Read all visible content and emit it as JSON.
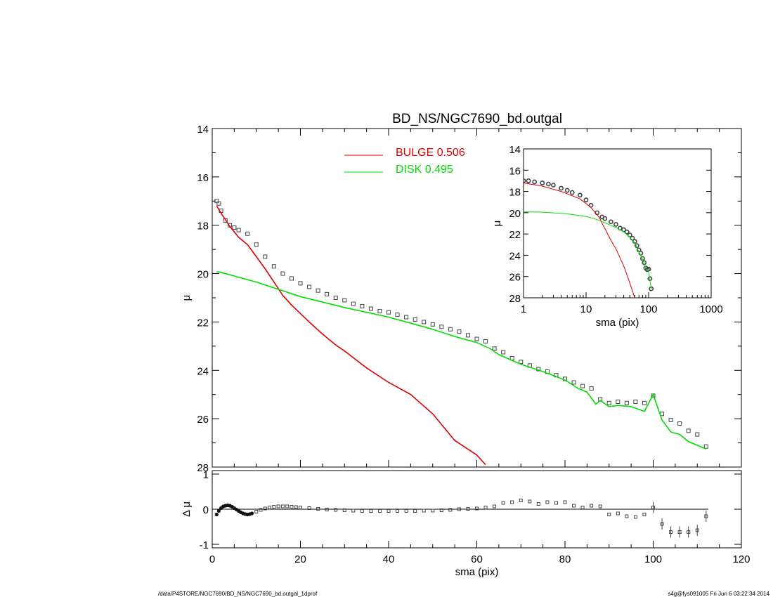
{
  "title": "BD_NS/NGC7690_bd.outgal",
  "footer": {
    "left": "/data/P4STORE/NGC7690/BD_NS/NGC7690_bd.outgal_1dprof",
    "right": "s4g@fys091005  Fri Jun  6 03:22:34 2014"
  },
  "colors": {
    "bulge": "#dd0000",
    "disk": "#00dd00",
    "data": "#444444",
    "axis": "#000000"
  },
  "chart_data": [
    {
      "type": "line",
      "panel": "main",
      "xlabel": "",
      "ylabel": "μ",
      "xlim": [
        0,
        120
      ],
      "ylim": [
        28,
        14
      ],
      "y_inverted": true,
      "yticks": [
        14,
        16,
        18,
        20,
        22,
        24,
        26,
        28
      ],
      "legend_position": "top-center",
      "series": [
        {
          "name": "BULGE  0.506",
          "color": "#dd0000",
          "style": "line",
          "x": [
            1,
            2,
            4,
            6,
            8,
            10,
            12,
            14,
            16,
            18,
            20,
            22,
            25,
            28,
            30,
            35,
            40,
            45,
            50,
            55,
            60,
            62
          ],
          "y": [
            17.2,
            17.5,
            18.05,
            18.5,
            18.8,
            19.3,
            19.8,
            20.35,
            20.9,
            21.3,
            21.65,
            22.0,
            22.5,
            22.95,
            23.2,
            23.9,
            24.5,
            25.0,
            25.8,
            26.9,
            27.5,
            27.9
          ]
        },
        {
          "name": "DISK  0.495",
          "color": "#00dd00",
          "style": "line",
          "x": [
            1,
            2,
            5,
            10,
            15,
            20,
            30,
            40,
            50,
            55,
            60,
            63,
            65,
            70,
            75,
            80,
            83,
            85,
            87,
            88,
            90,
            92,
            95,
            98,
            100,
            102,
            104,
            106,
            108,
            110,
            112
          ],
          "y": [
            19.92,
            19.95,
            20.1,
            20.35,
            20.65,
            20.95,
            21.4,
            21.8,
            22.3,
            22.6,
            22.85,
            23.1,
            23.35,
            23.75,
            24.05,
            24.4,
            24.75,
            24.9,
            25.4,
            25.25,
            25.5,
            25.45,
            25.5,
            25.7,
            25.0,
            26.05,
            26.55,
            26.65,
            26.95,
            27.1,
            27.25
          ]
        },
        {
          "name": "",
          "color": "#444444",
          "style": "square-markers",
          "x": [
            1,
            1.5,
            2,
            3,
            4,
            5,
            6,
            8,
            10,
            12,
            14,
            16,
            18,
            20,
            22,
            24,
            26,
            28,
            30,
            32,
            34,
            36,
            38,
            40,
            42,
            44,
            46,
            48,
            50,
            52,
            54,
            56,
            58,
            60,
            62,
            64,
            66,
            68,
            70,
            72,
            74,
            76,
            78,
            80,
            82,
            84,
            86,
            88,
            90,
            92,
            94,
            96,
            98,
            100,
            102,
            104,
            106,
            108,
            110,
            112
          ],
          "y": [
            17.0,
            17.1,
            17.4,
            17.8,
            18.0,
            18.1,
            18.2,
            18.35,
            18.8,
            19.3,
            19.7,
            20.0,
            20.2,
            20.4,
            20.55,
            20.7,
            20.85,
            21.0,
            21.1,
            21.25,
            21.35,
            21.45,
            21.55,
            21.6,
            21.7,
            21.8,
            21.9,
            22.0,
            22.1,
            22.2,
            22.3,
            22.4,
            22.55,
            22.7,
            22.8,
            23.1,
            23.25,
            23.5,
            23.65,
            23.8,
            23.95,
            24.05,
            24.2,
            24.35,
            24.5,
            24.65,
            24.75,
            25.2,
            25.35,
            25.3,
            25.35,
            25.3,
            25.35,
            25.05,
            25.8,
            26.05,
            26.2,
            26.5,
            26.65,
            27.15
          ]
        }
      ]
    },
    {
      "type": "scatter",
      "panel": "residual",
      "xlabel": "sma (pix)",
      "ylabel": "Δ μ",
      "xlim": [
        0,
        120
      ],
      "ylim": [
        -1.1,
        1.1
      ],
      "yticks": [
        -1,
        0,
        1
      ],
      "xticks": [
        0,
        20,
        40,
        60,
        80,
        100,
        120
      ],
      "reference_line": 0,
      "series": [
        {
          "name": "",
          "color": "#444444",
          "x": [
            1,
            1.5,
            2,
            2.5,
            3,
            3.5,
            4,
            4.5,
            5,
            5.5,
            6,
            6.5,
            7,
            7.5,
            8,
            8.5,
            9,
            10,
            11,
            12,
            13,
            14,
            15,
            16,
            17,
            18,
            19,
            20,
            22,
            24,
            26,
            28,
            30,
            32,
            34,
            36,
            38,
            40,
            42,
            44,
            46,
            48,
            50,
            52,
            54,
            56,
            58,
            60,
            62,
            64,
            66,
            68,
            70,
            72,
            74,
            76,
            78,
            80,
            82,
            84,
            86,
            88,
            90,
            92,
            94,
            96,
            98,
            100,
            102,
            104,
            106,
            108,
            110,
            112
          ],
          "y": [
            -0.15,
            -0.05,
            0.03,
            0.08,
            0.1,
            0.11,
            0.1,
            0.07,
            0.03,
            -0.01,
            -0.05,
            -0.09,
            -0.12,
            -0.14,
            -0.15,
            -0.14,
            -0.12,
            -0.07,
            -0.02,
            0.02,
            0.05,
            0.07,
            0.08,
            0.08,
            0.08,
            0.07,
            0.06,
            0.05,
            0.03,
            0.01,
            -0.01,
            -0.02,
            -0.03,
            -0.04,
            -0.05,
            -0.05,
            -0.05,
            -0.05,
            -0.05,
            -0.05,
            -0.05,
            -0.04,
            -0.04,
            -0.03,
            -0.02,
            0.0,
            0.01,
            0.02,
            0.05,
            0.08,
            0.18,
            0.2,
            0.25,
            0.22,
            0.15,
            0.2,
            0.18,
            0.2,
            0.1,
            0.05,
            0.1,
            0.08,
            -0.15,
            -0.12,
            -0.2,
            -0.22,
            -0.15,
            0.05,
            -0.42,
            -0.65,
            -0.65,
            -0.65,
            -0.6,
            -0.2
          ]
        }
      ]
    },
    {
      "type": "line",
      "panel": "inset",
      "xlabel": "sma (pix)",
      "ylabel": "μ",
      "x_scale": "log",
      "xlim": [
        1,
        1000
      ],
      "ylim": [
        28,
        14
      ],
      "y_inverted": true,
      "xticks": [
        1,
        10,
        100,
        1000
      ],
      "yticks": [
        14,
        16,
        18,
        20,
        22,
        24,
        26,
        28
      ],
      "series": [
        {
          "name": "",
          "color": "#dd0000",
          "style": "line",
          "x": [
            1,
            2,
            4,
            8,
            12,
            16,
            20,
            25,
            30,
            40,
            50,
            60
          ],
          "y": [
            17.2,
            17.5,
            18.0,
            18.7,
            19.5,
            20.4,
            21.5,
            22.6,
            23.4,
            25.0,
            26.6,
            28.0
          ]
        },
        {
          "name": "",
          "color": "#00dd00",
          "style": "line",
          "x": [
            1,
            2,
            5,
            10,
            15,
            20,
            30,
            40,
            50,
            60,
            70,
            80,
            90,
            100,
            110
          ],
          "y": [
            19.92,
            19.95,
            20.1,
            20.35,
            20.65,
            20.95,
            21.4,
            21.8,
            22.3,
            22.85,
            23.7,
            24.4,
            25.3,
            25.5,
            27.2
          ]
        },
        {
          "name": "",
          "color": "#444444",
          "style": "markers",
          "x": [
            1,
            1.2,
            1.5,
            2,
            2.5,
            3,
            4,
            5,
            6,
            8,
            10,
            12,
            15,
            18,
            20,
            25,
            30,
            35,
            40,
            45,
            50,
            55,
            60,
            65,
            70,
            75,
            80,
            85,
            90,
            95,
            100,
            105,
            110
          ],
          "y": [
            17.0,
            17.0,
            17.1,
            17.2,
            17.3,
            17.4,
            17.7,
            17.9,
            18.1,
            18.35,
            18.8,
            19.3,
            20.0,
            20.4,
            20.55,
            20.85,
            21.1,
            21.45,
            21.6,
            21.8,
            22.1,
            22.4,
            22.7,
            23.1,
            23.5,
            23.8,
            24.3,
            24.7,
            25.2,
            25.35,
            25.3,
            26.2,
            27.15
          ]
        }
      ]
    }
  ]
}
